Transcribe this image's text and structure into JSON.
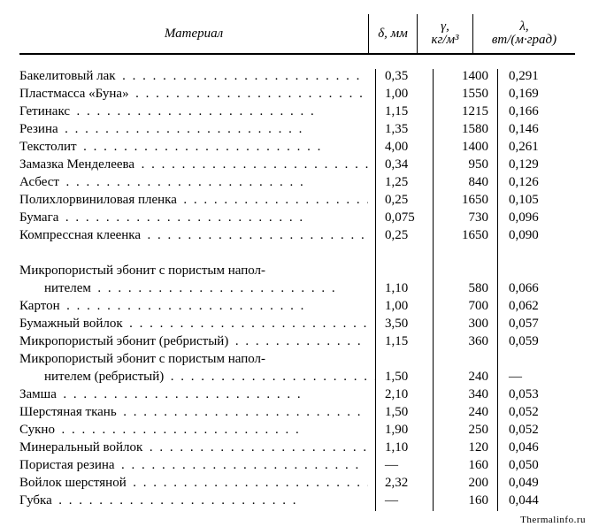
{
  "header": {
    "material": "Материал",
    "delta": "δ, мм",
    "gamma_top": "γ,",
    "gamma_bot": "кг/м³",
    "lambda_top": "λ,",
    "lambda_bot": "вт/(м·град)"
  },
  "dot_fill": ".  .  .  .  .  .  .  .  .  .  .  .  .  .  .  .  .  .  .  .  .  .  .  .",
  "dash": "—",
  "watermark": "Thermalinfo.ru",
  "groups": [
    {
      "rows": [
        {
          "name": "Бакелитовый лак",
          "d": "0,35",
          "g": "1400",
          "l": "0,291"
        },
        {
          "name": "Пластмасса «Буна»",
          "d": "1,00",
          "g": "1550",
          "l": "0,169"
        },
        {
          "name": "Гетинакс",
          "d": "1,15",
          "g": "1215",
          "l": "0,166"
        },
        {
          "name": "Резина",
          "d": "1,35",
          "g": "1580",
          "l": "0,146"
        },
        {
          "name": "Текстолит",
          "d": "4,00",
          "g": "1400",
          "l": "0,261"
        },
        {
          "name": "Замазка Менделеева",
          "d": "0,34",
          "g": "950",
          "l": "0,129"
        },
        {
          "name": "Асбест",
          "d": "1,25",
          "g": "840",
          "l": "0,126"
        },
        {
          "name": "Полихлорвиниловая пленка",
          "d": "0,25",
          "g": "1650",
          "l": "0,105"
        },
        {
          "name": "Бумага",
          "d": "0,075",
          "g": "730",
          "l": "0,096"
        },
        {
          "name": "Компрессная клеенка",
          "d": "0,25",
          "g": "1650",
          "l": "0,090"
        }
      ]
    },
    {
      "rows": [
        {
          "name_lines": [
            "Микропористый эбонит с пористым напол-",
            "нителем"
          ],
          "d": "1,10",
          "g": "580",
          "l": "0,066"
        },
        {
          "name": "Картон",
          "d": "1,00",
          "g": "700",
          "l": "0,062"
        },
        {
          "name": "Бумажный войлок",
          "d": "3,50",
          "g": "300",
          "l": "0,057"
        },
        {
          "name": "Микропористый эбонит (ребристый)",
          "d": "1,15",
          "g": "360",
          "l": "0,059"
        },
        {
          "name_lines": [
            "Микропористый эбонит с пористым напол-",
            "нителем (ребристый)"
          ],
          "d": "1,50",
          "g": "240",
          "l": "—"
        },
        {
          "name": "Замша",
          "d": "2,10",
          "g": "340",
          "l": "0,053"
        },
        {
          "name": "Шерстяная ткань",
          "d": "1,50",
          "g": "240",
          "l": "0,052"
        },
        {
          "name": "Сукно",
          "d": "1,90",
          "g": "250",
          "l": "0,052"
        },
        {
          "name": "Минеральный войлок",
          "d": "1,10",
          "g": "120",
          "l": "0,046"
        },
        {
          "name": "Пористая резина",
          "d": "—",
          "g": "160",
          "l": "0,050"
        },
        {
          "name": "Войлок шерстяной",
          "d": "2,32",
          "g": "200",
          "l": "0,049"
        },
        {
          "name": "Губка",
          "d": "—",
          "g": "160",
          "l": "0,044"
        }
      ]
    }
  ]
}
